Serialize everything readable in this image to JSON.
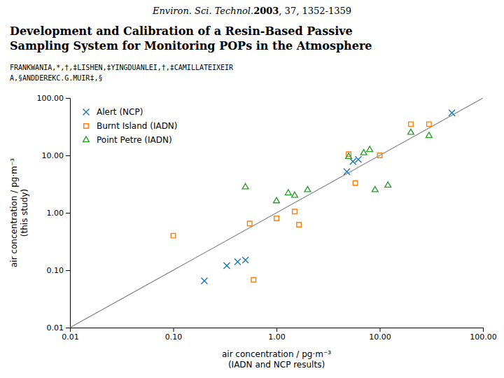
{
  "chart_data": {
    "type": "scatter",
    "title": [
      "Development and Calibration of a Resin-Based Passive",
      "Sampling System for Monitoring POPs in the Atmosphere"
    ],
    "subtitle": [
      "Environ. Sci. Technol.",
      "2003",
      ", 37, 1352-1359"
    ],
    "annotations": [
      "FRANKWANIA,*,†,‡LISHEN,‡YINGDUANLEI,†,‡CAMILLATEIXEIR",
      "A,§ANDDEREKC.G.MUIR‡,§"
    ],
    "xlabel": [
      "air concentration / pg·m⁻³",
      "(IADN and NCP results)"
    ],
    "ylabel": [
      "air concentration / pg·m⁻³",
      "(this study)"
    ],
    "log": true,
    "grid": false,
    "legend": "upper left",
    "xlim": [
      0.01,
      100.0
    ],
    "ylim": [
      0.01,
      100.0
    ],
    "xticks": [
      0.01,
      {
        "value": 0.1,
        "label": "0.10"
      },
      {
        "value": 1.0,
        "label": "1.00"
      },
      {
        "value": 10.0,
        "label": "10.00"
      },
      {
        "value": 100.0,
        "label": "100.00"
      }
    ],
    "yticks": [
      0.01,
      {
        "value": 0.1,
        "label": "0.10"
      },
      {
        "value": 1.0,
        "label": "1.00"
      },
      {
        "value": 10.0,
        "label": "10.00"
      },
      {
        "value": 100.0,
        "label": "100.00"
      }
    ],
    "series": [
      {
        "type": "line",
        "color": "#888888",
        "line_style": "solid",
        "x": [
          0.01,
          100.0
        ],
        "values": [
          0.01,
          100.0
        ]
      },
      {
        "name": "Alert (NCP)",
        "type": "scatter",
        "marker": "x",
        "x": [
          0.2,
          0.33,
          0.42,
          0.5,
          4.8,
          5.5,
          6.2,
          50.0
        ],
        "values": [
          0.065,
          0.12,
          0.14,
          0.15,
          5.2,
          7.8,
          8.5,
          55.0
        ]
      },
      {
        "name": "Burnt Island (IADN)",
        "type": "scatter",
        "marker": "square",
        "x": [
          0.1,
          0.55,
          0.6,
          1.0,
          1.5,
          1.65,
          5.0,
          5.8,
          10.0,
          20.0,
          30.0
        ],
        "values": [
          0.4,
          0.65,
          0.068,
          0.8,
          1.05,
          0.62,
          10.5,
          3.3,
          10.0,
          35.0,
          35.0
        ]
      },
      {
        "name": "Point Petre (IADN)",
        "type": "scatter",
        "marker": "triangle",
        "x": [
          0.5,
          1.0,
          1.3,
          1.5,
          2.0,
          5.0,
          7.0,
          8.0,
          9.0,
          12.0,
          20.0,
          30.0
        ],
        "values": [
          2.8,
          1.6,
          2.2,
          2.0,
          2.5,
          9.5,
          11.0,
          12.5,
          2.5,
          3.0,
          25.0,
          22.0
        ]
      }
    ]
  }
}
